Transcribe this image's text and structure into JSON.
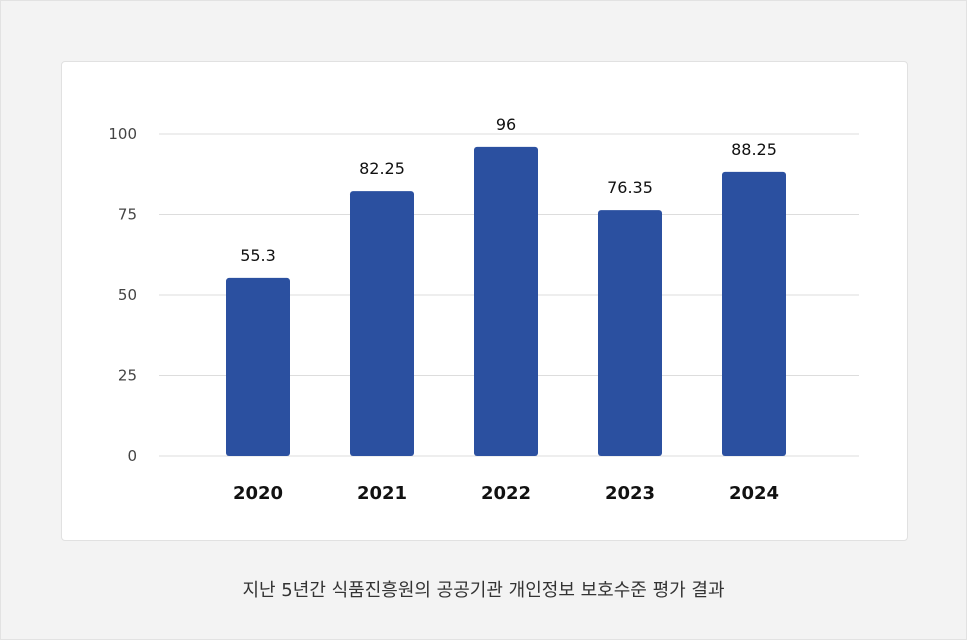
{
  "caption": "지난 5년간 식품진흥원의 공공기관 개인정보 보호수준 평가 결과",
  "colors": {
    "bar": "#2b50a0",
    "grid": "#dddddd",
    "tick": "#444444",
    "label": "#111111"
  },
  "chart_data": {
    "type": "bar",
    "categories": [
      "2020",
      "2021",
      "2022",
      "2023",
      "2024"
    ],
    "values": [
      55.3,
      82.25,
      96,
      76.35,
      88.25
    ],
    "value_labels": [
      "55.3",
      "82.25",
      "96",
      "76.35",
      "88.25"
    ],
    "yticks": [
      0,
      25,
      50,
      75,
      100
    ],
    "ylim": [
      0,
      100
    ],
    "grid": true,
    "legend": "none"
  }
}
